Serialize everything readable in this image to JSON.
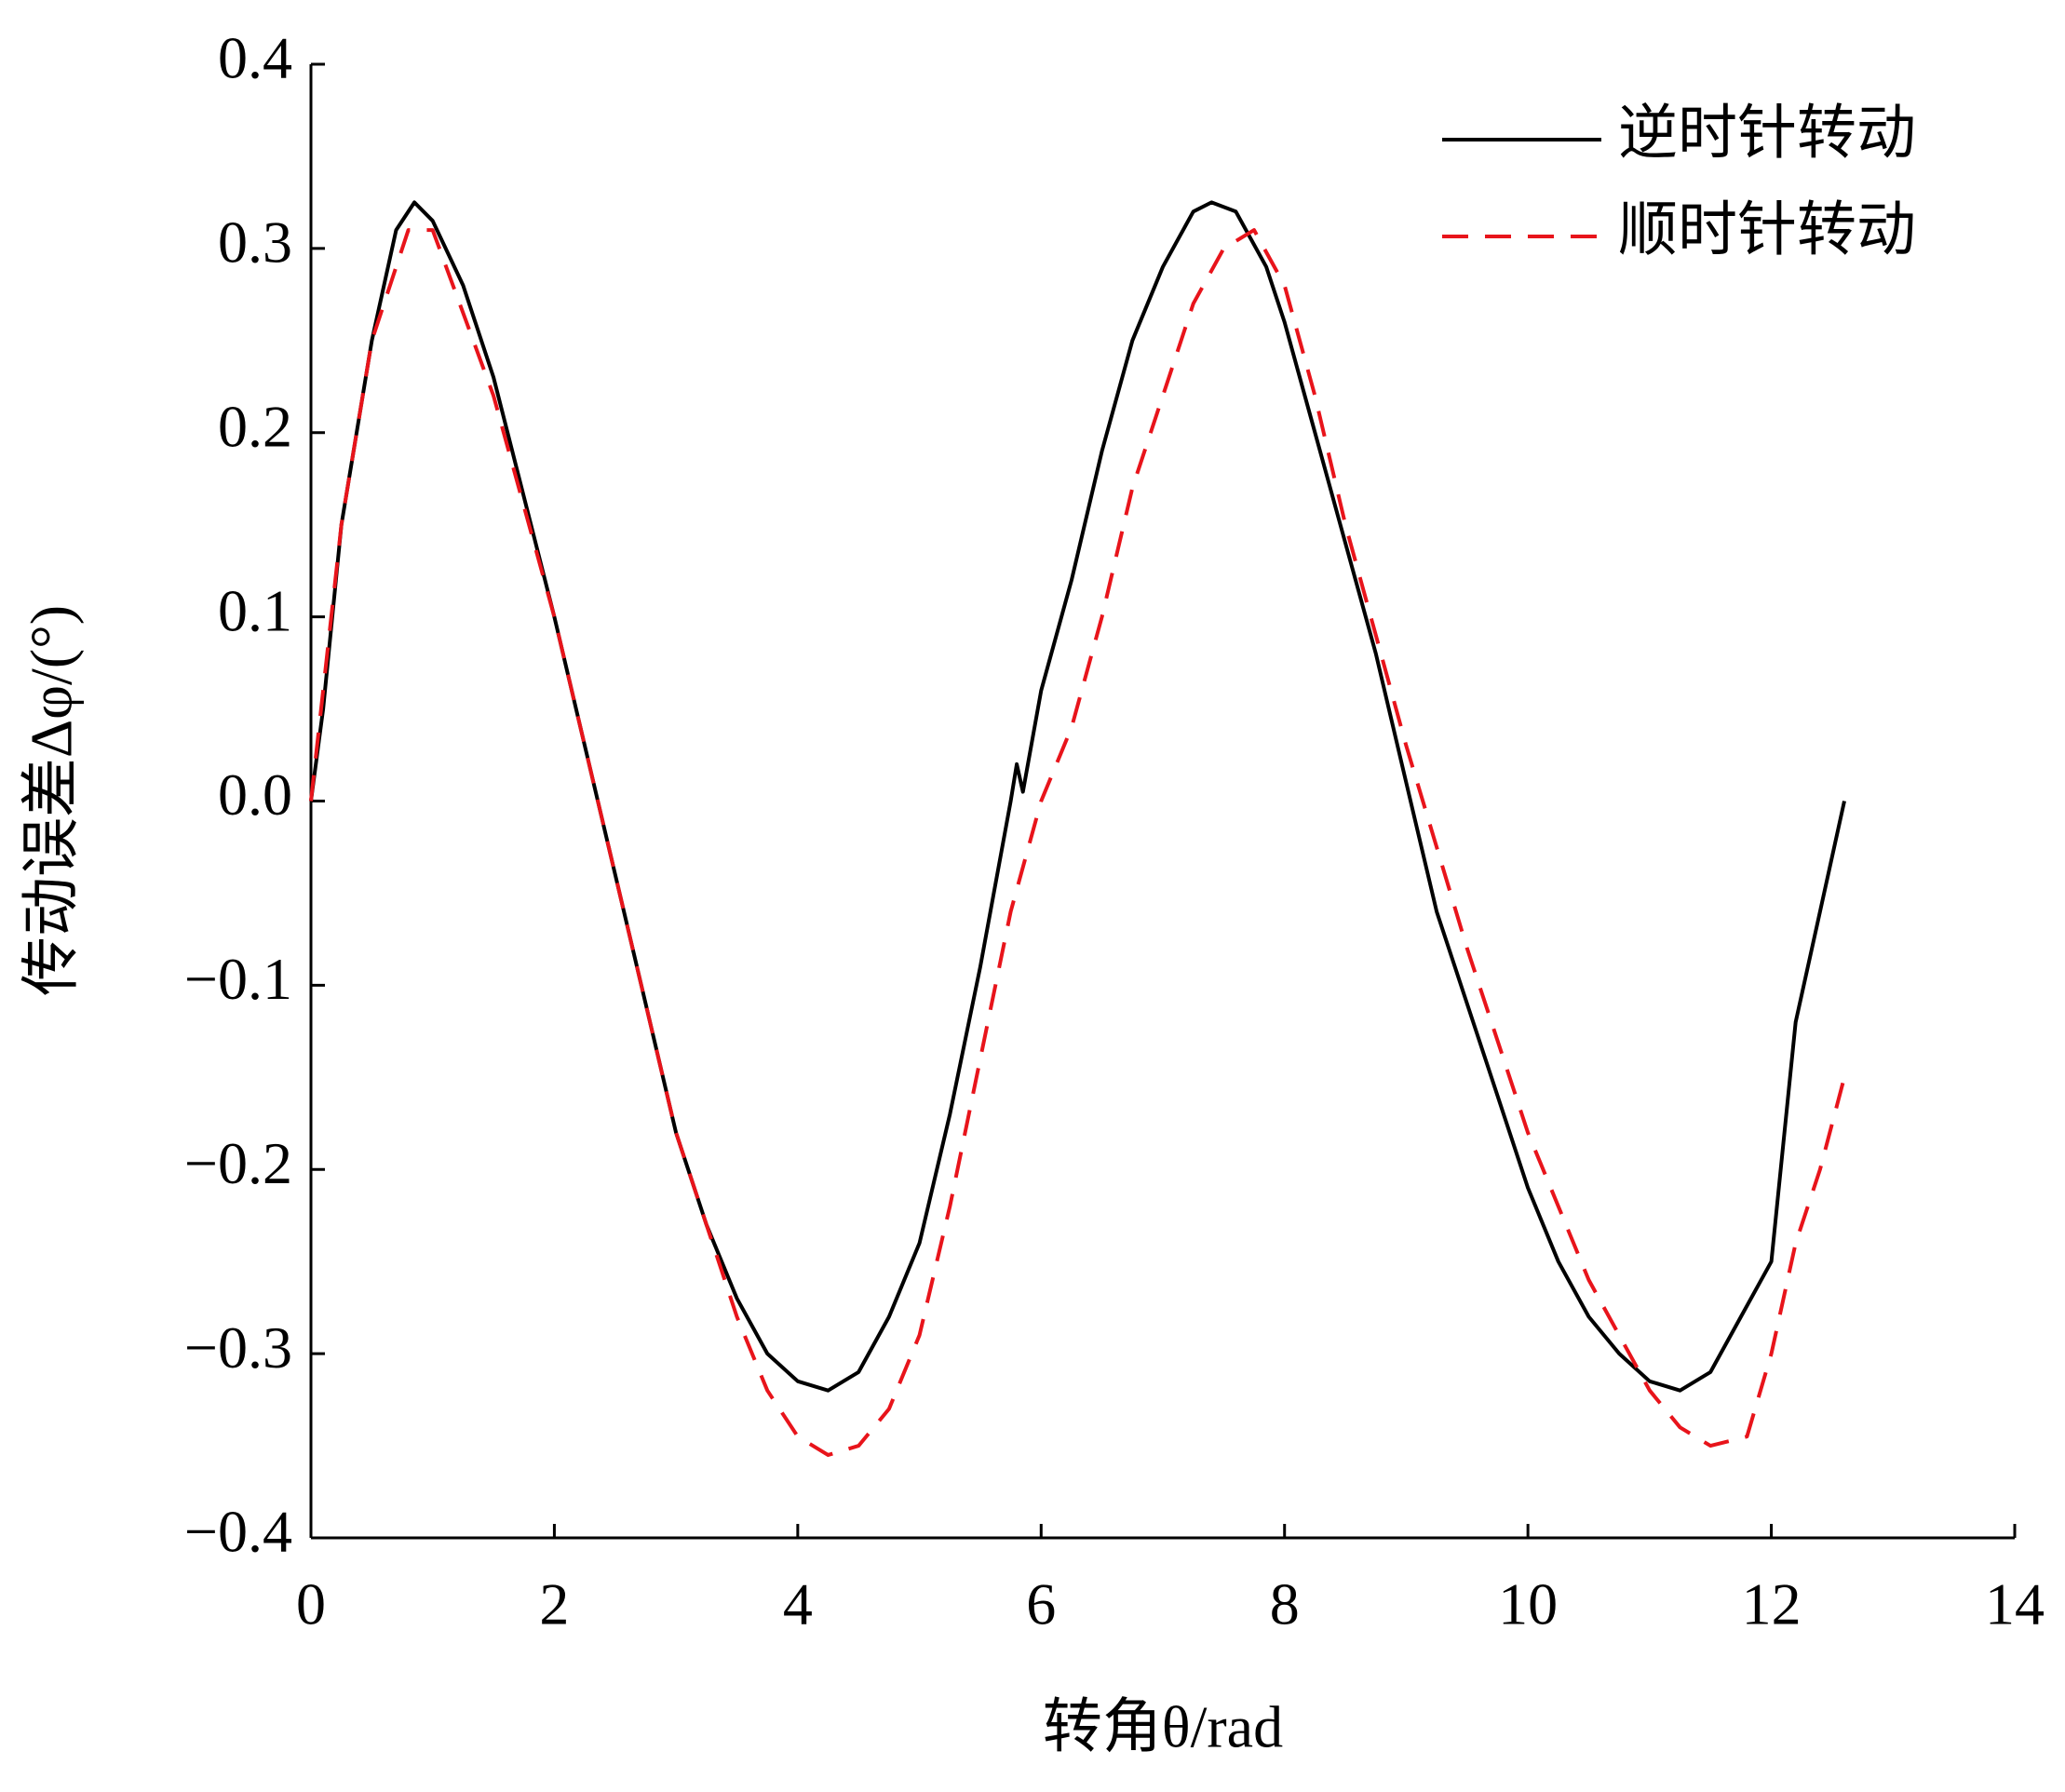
{
  "chart_data": {
    "type": "line",
    "xlabel": "转角θ/rad",
    "ylabel": "传动误差Δφ/(°)",
    "xlim": [
      0,
      14
    ],
    "xticks": [
      0,
      2,
      4,
      6,
      8,
      10,
      12,
      14
    ],
    "ylim": [
      -0.4,
      0.4
    ],
    "yticks": [
      {
        "value": -0.4,
        "label": "−0.4"
      },
      {
        "value": -0.3,
        "label": "−0.3"
      },
      {
        "value": -0.2,
        "label": "−0.2"
      },
      {
        "value": -0.1,
        "label": "−0.1"
      },
      {
        "value": 0,
        "label": "0.0"
      },
      0.1,
      0.2,
      0.3,
      0.4
    ],
    "legend": "upper right",
    "series": [
      {
        "name": "逆时针转动",
        "color": "#000000",
        "dash": "solid",
        "x": [
          0,
          0.1,
          0.25,
          0.5,
          0.7,
          0.85,
          1.0,
          1.25,
          1.5,
          1.75,
          2.0,
          2.25,
          2.5,
          2.75,
          3.0,
          3.25,
          3.5,
          3.75,
          4.0,
          4.25,
          4.5,
          4.75,
          5.0,
          5.25,
          5.5,
          5.75,
          5.8,
          5.85,
          6.0,
          6.25,
          6.5,
          6.75,
          7.0,
          7.25,
          7.4,
          7.6,
          7.85,
          8.0,
          8.25,
          8.5,
          8.75,
          9.0,
          9.25,
          9.5,
          9.75,
          10.0,
          10.25,
          10.5,
          10.75,
          11.0,
          11.25,
          11.5,
          11.75,
          12.0,
          12.2,
          12.4,
          12.6
        ],
        "values": [
          0,
          0.05,
          0.15,
          0.25,
          0.31,
          0.325,
          0.315,
          0.28,
          0.23,
          0.165,
          0.1,
          0.03,
          -0.04,
          -0.11,
          -0.18,
          -0.23,
          -0.27,
          -0.3,
          -0.315,
          -0.32,
          -0.31,
          -0.28,
          -0.24,
          -0.17,
          -0.09,
          0.0,
          0.02,
          0.005,
          0.06,
          0.12,
          0.19,
          0.25,
          0.29,
          0.32,
          0.325,
          0.32,
          0.29,
          0.26,
          0.2,
          0.14,
          0.08,
          0.01,
          -0.06,
          -0.11,
          -0.16,
          -0.21,
          -0.25,
          -0.28,
          -0.3,
          -0.315,
          -0.32,
          -0.31,
          -0.28,
          -0.25,
          -0.12,
          -0.06,
          0.0
        ]
      },
      {
        "name": "顺时针转动",
        "color": "#e8141b",
        "dash": "dashed",
        "x": [
          0,
          0.25,
          0.5,
          0.8,
          1.0,
          1.5,
          2.0,
          2.5,
          3.0,
          3.5,
          3.75,
          4.0,
          4.25,
          4.5,
          4.75,
          5.0,
          5.25,
          5.5,
          5.75,
          6.0,
          6.25,
          6.5,
          6.75,
          7.0,
          7.25,
          7.5,
          7.75,
          8.0,
          8.25,
          8.5,
          8.75,
          9.0,
          9.5,
          10.0,
          10.5,
          11.0,
          11.25,
          11.5,
          11.8,
          12.0,
          12.2,
          12.4,
          12.6
        ],
        "values": [
          0,
          0.15,
          0.25,
          0.31,
          0.31,
          0.22,
          0.1,
          -0.04,
          -0.18,
          -0.28,
          -0.32,
          -0.345,
          -0.355,
          -0.35,
          -0.33,
          -0.29,
          -0.22,
          -0.14,
          -0.06,
          0.0,
          0.04,
          0.1,
          0.17,
          0.22,
          0.27,
          0.3,
          0.31,
          0.28,
          0.22,
          0.15,
          0.09,
          0.03,
          -0.08,
          -0.18,
          -0.26,
          -0.32,
          -0.34,
          -0.35,
          -0.345,
          -0.3,
          -0.24,
          -0.2,
          -0.15
        ]
      }
    ]
  }
}
